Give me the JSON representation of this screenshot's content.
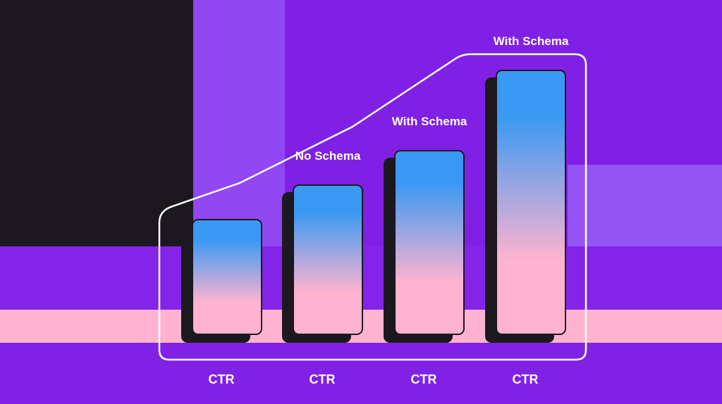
{
  "chart_data": {
    "type": "bar",
    "categories": [
      "CTR",
      "CTR",
      "CTR",
      "CTR"
    ],
    "values": [
      1.0,
      1.3,
      1.6,
      2.3
    ],
    "annotations": [
      {
        "text": "No Schema",
        "bar": 1
      },
      {
        "text": "With Schema",
        "bar": 2
      },
      {
        "text": "With Schema",
        "bar": 3
      }
    ],
    "title": "",
    "xlabel": "",
    "ylabel": "",
    "ylim": [
      0,
      2.3
    ],
    "grid": false
  },
  "colors": {
    "bar_top": "#3a99f2",
    "bar_bottom": "#ffb3cf",
    "bar_shadow": "#1c1820",
    "outline": "#ffffff",
    "text": "#ffffff"
  }
}
